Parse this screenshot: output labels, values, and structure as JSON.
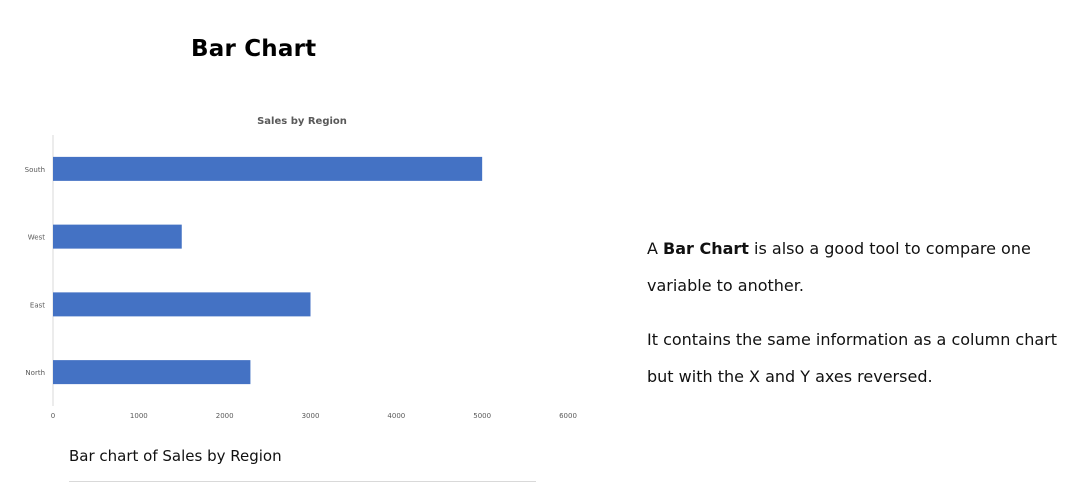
{
  "page": {
    "title": "Bar Chart"
  },
  "description": {
    "p1_prefix": "A ",
    "p1_bold": "Bar Chart",
    "p1_suffix": " is also a good tool to compare one variable to another.",
    "p2": "It contains the same information as a column chart but with the X and Y axes reversed."
  },
  "caption": "Bar chart of Sales by Region",
  "chart_data": {
    "type": "bar",
    "orientation": "horizontal",
    "title": "Sales by Region",
    "categories": [
      "South",
      "West",
      "East",
      "North"
    ],
    "values": [
      5000,
      1500,
      3000,
      2300
    ],
    "xticks": [
      "0",
      "1000",
      "2000",
      "3000",
      "4000",
      "5000",
      "6000"
    ],
    "xlim": [
      0,
      6000
    ],
    "xlabel": "",
    "ylabel": "",
    "grid": false,
    "legend": "none",
    "bar_color": "#4472c4"
  }
}
